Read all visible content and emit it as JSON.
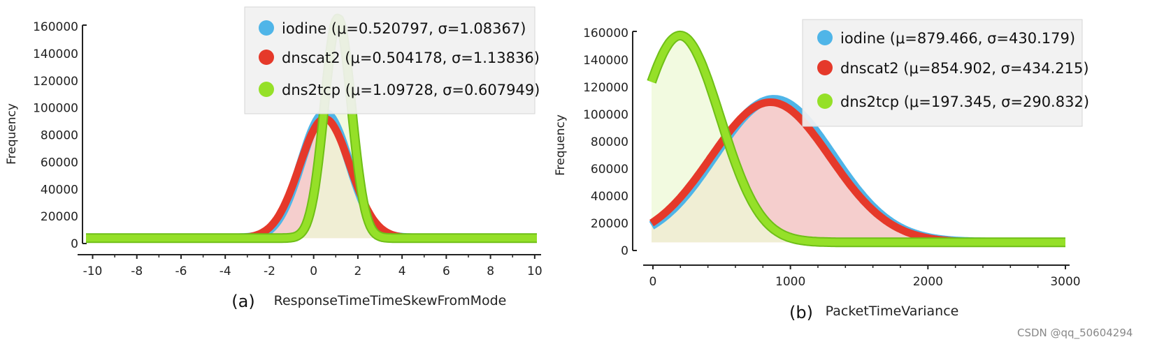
{
  "watermark": "CSDN @qq_50604294",
  "colors": {
    "iodine": "#4fb5e8",
    "dnscat2": "#e5392a",
    "dns2tcp": "#95e028",
    "dnscat2_fill": "#f3c6c4",
    "dns2tcp_fill": "#eef8d6",
    "legend_bg": "#f1f1f1"
  },
  "chart_data": [
    {
      "type": "area",
      "panel_label": "(a)",
      "xlabel": "ResponseTimeTimeSkewFromMode",
      "ylabel": "Frequency",
      "xlim": [
        -10.3,
        10.1
      ],
      "ylim": [
        0,
        160000
      ],
      "xticks": [
        "-10",
        "-8",
        "-6",
        "-4",
        "-2",
        "0",
        "2",
        "4",
        "6",
        "8",
        "10"
      ],
      "yticks": [
        "0",
        "20000",
        "40000",
        "60000",
        "80000",
        "100000",
        "120000",
        "140000",
        "160000"
      ],
      "legend_position": "top-right",
      "baseline": 4000,
      "series": [
        {
          "name": "iodine (μ=0.520797, σ=1.08367)",
          "mu": 0.520797,
          "sigma": 1.08367,
          "peak": 92000
        },
        {
          "name": "dnscat2 (μ=0.504178, σ=1.13836)",
          "mu": 0.504178,
          "sigma": 1.13836,
          "peak": 88000
        },
        {
          "name": "dns2tcp (μ=1.09728, σ=0.607949)",
          "mu": 1.09728,
          "sigma": 0.607949,
          "peak": 162000
        }
      ]
    },
    {
      "type": "area",
      "panel_label": "(b)",
      "xlabel": "PacketTimeVariance",
      "ylabel": "Frequency",
      "xlim": [
        -10,
        3000
      ],
      "ylim": [
        0,
        160000
      ],
      "xticks": [
        "0",
        "1000",
        "2000",
        "3000"
      ],
      "yticks": [
        "0",
        "20000",
        "40000",
        "60000",
        "80000",
        "100000",
        "120000",
        "140000",
        "160000"
      ],
      "legend_position": "top-right",
      "baseline": 6000,
      "series": [
        {
          "name": "iodine (μ=879.466, σ=430.179)",
          "mu": 879.466,
          "sigma": 430.179,
          "peak": 105000
        },
        {
          "name": "dnscat2 (μ=854.902, σ=434.215)",
          "mu": 854.902,
          "sigma": 434.215,
          "peak": 103000
        },
        {
          "name": "dns2tcp (μ=197.345, σ=290.832)",
          "mu": 197.345,
          "sigma": 290.832,
          "peak": 152000
        }
      ]
    }
  ]
}
